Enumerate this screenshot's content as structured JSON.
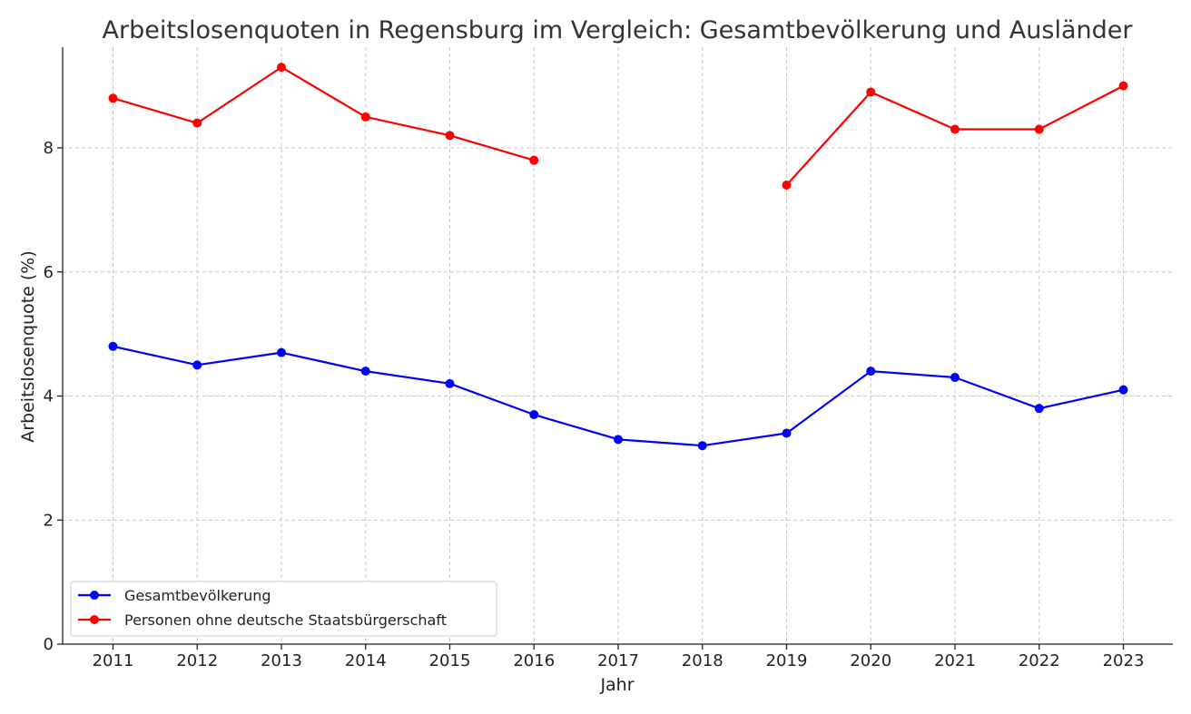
{
  "chart_data": {
    "type": "line",
    "title": "Arbeitslosenquoten in Regensburg im Vergleich: Gesamtbevölkerung und Ausländer",
    "xlabel": "Jahr",
    "ylabel": "Arbeitslosenquote (%)",
    "x": [
      2011,
      2012,
      2013,
      2014,
      2015,
      2016,
      2017,
      2018,
      2019,
      2020,
      2021,
      2022,
      2023
    ],
    "ylim": [
      0,
      9.6
    ],
    "yticks": [
      0,
      2,
      4,
      6,
      8
    ],
    "grid": true,
    "legend_position": "bottom-left",
    "series": [
      {
        "name": "Gesamtbevölkerung",
        "color": "#0000ff",
        "values": [
          4.8,
          4.5,
          4.7,
          4.4,
          4.2,
          3.7,
          3.3,
          3.2,
          3.4,
          4.4,
          4.3,
          3.8,
          4.1
        ]
      },
      {
        "name": "Personen ohne deutsche Staatsbürgerschaft",
        "color": "#ff0000",
        "values": [
          8.8,
          8.4,
          9.3,
          8.5,
          8.2,
          7.8,
          null,
          null,
          7.4,
          8.9,
          8.3,
          8.3,
          9.0
        ]
      }
    ]
  }
}
